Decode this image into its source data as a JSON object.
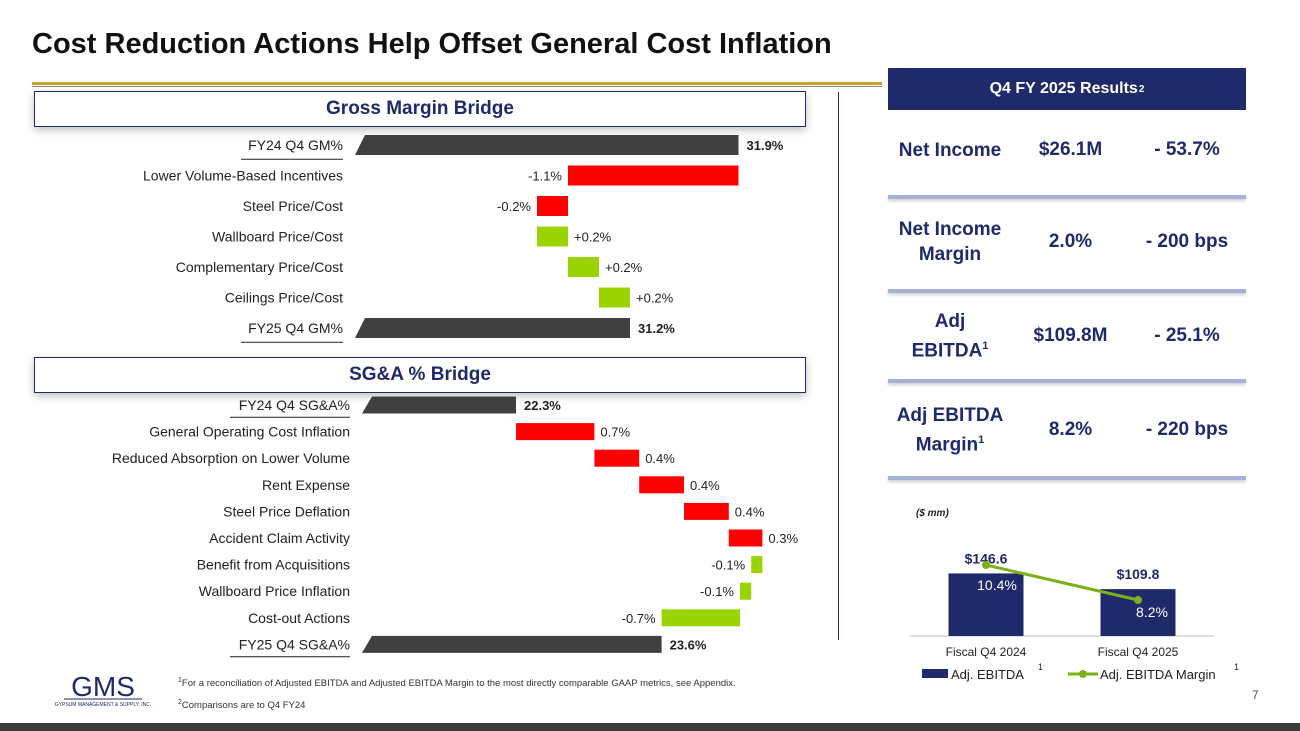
{
  "title": "Cost Reduction Actions Help Offset General Cost Inflation",
  "gm_header": "Gross Margin Bridge",
  "sga_header": "SG&A % Bridge",
  "results": {
    "header": "Q4 FY 2025 Results",
    "header_sup": "2",
    "rows": [
      {
        "label": "Net Income",
        "value": "$26.1M",
        "change": "- 53.7%"
      },
      {
        "label": "Net Income Margin",
        "value": "2.0%",
        "change": "- 200 bps"
      },
      {
        "label": "Adj EBITDA",
        "label_sup": "1",
        "value": "$109.8M",
        "change": "- 25.1%"
      },
      {
        "label": "Adj EBITDA Margin",
        "label_sup": "1",
        "value": "8.2%",
        "change": "- 220 bps"
      }
    ]
  },
  "colors": {
    "navy": "#1f2a6b",
    "red": "#ff0000",
    "green": "#99d400",
    "dark": "#404040",
    "line_green": "#7ab317"
  },
  "chart_data": [
    {
      "type": "bar",
      "subtype": "waterfall",
      "title": "Gross Margin Bridge",
      "start": 31.9,
      "categories": [
        "FY24 Q4 GM%",
        "Lower Volume-Based Incentives",
        "Steel Price/Cost",
        "Wallboard Price/Cost",
        "Complementary Price/Cost",
        "Ceilings Price/Cost",
        "FY25 Q4 GM%"
      ],
      "values": [
        31.9,
        -1.1,
        -0.2,
        0.2,
        0.2,
        0.2,
        31.2
      ],
      "kinds": [
        "total",
        "delta",
        "delta",
        "delta",
        "delta",
        "delta",
        "total"
      ],
      "labels": [
        "31.9%",
        "-1.1%",
        "-0.2%",
        "+0.2%",
        "+0.2%",
        "+0.2%",
        "31.2%"
      ],
      "underlined": [
        true,
        false,
        false,
        false,
        false,
        false,
        true
      ]
    },
    {
      "type": "bar",
      "subtype": "waterfall",
      "title": "SG&A % Bridge",
      "start": 22.3,
      "categories": [
        "FY24 Q4 SG&A%",
        "General Operating Cost Inflation",
        "Reduced Absorption on Lower Volume",
        "Rent Expense",
        "Steel Price Deflation",
        "Accident Claim Activity",
        "Benefit from Acquisitions",
        "Wallboard Price Inflation",
        "Cost-out Actions",
        "FY25 Q4 SG&A%"
      ],
      "values": [
        22.3,
        0.7,
        0.4,
        0.4,
        0.4,
        0.3,
        -0.1,
        -0.1,
        -0.7,
        23.6
      ],
      "kinds": [
        "total",
        "delta",
        "delta",
        "delta",
        "delta",
        "delta",
        "delta",
        "delta",
        "delta",
        "total"
      ],
      "labels": [
        "22.3%",
        "0.7%",
        "0.4%",
        "0.4%",
        "0.4%",
        "0.3%",
        "-0.1%",
        "-0.1%",
        "-0.7%",
        "23.6%"
      ],
      "underlined": [
        true,
        false,
        false,
        false,
        false,
        false,
        false,
        false,
        false,
        true
      ]
    },
    {
      "type": "bar",
      "subtype": "combo-bar-line",
      "unit_note": "($ mm)",
      "categories": [
        "Fiscal Q4 2024",
        "Fiscal Q4 2025"
      ],
      "series": [
        {
          "name": "Adj. EBITDA",
          "name_sup": "1",
          "type": "bar",
          "values": [
            146.6,
            109.8
          ],
          "labels": [
            "$146.6",
            "$109.8"
          ]
        },
        {
          "name": "Adj. EBITDA Margin",
          "name_sup": "1",
          "type": "line",
          "values": [
            10.4,
            8.2
          ],
          "labels": [
            "10.4%",
            "8.2%"
          ]
        }
      ]
    }
  ],
  "footnotes": [
    {
      "sup": "1",
      "text": "For a reconciliation of Adjusted EBITDA and Adjusted EBITDA Margin to the most directly comparable GAAP metrics, see Appendix."
    },
    {
      "sup": "2",
      "text": "Comparisons are to Q4 FY24"
    }
  ],
  "logo": {
    "text": "GMS",
    "subtext": "GYPSUM MANAGEMENT & SUPPLY, INC."
  },
  "page_number": "7"
}
